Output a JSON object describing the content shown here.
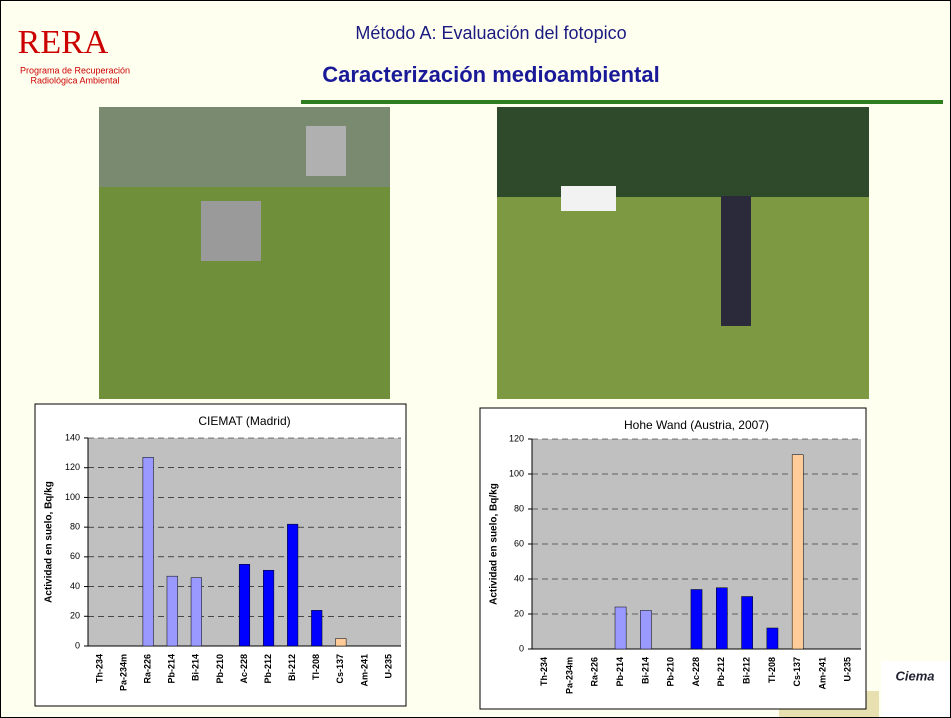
{
  "header": {
    "logo": "RERA",
    "logo_line1": "Programa de Recuperación",
    "logo_line2": "Radiológica Ambiental",
    "title": "Método A: Evaluación del fotopico",
    "subtitle": "Caracterización medioambiental",
    "footer_logo": "Ciema"
  },
  "chart_data": [
    {
      "type": "bar",
      "title": "CIEMAT (Madrid)",
      "y_label": "Actividad en suelo, Bq/kg",
      "categories": [
        "Th-234",
        "Pa-234m",
        "Ra-226",
        "Pb-214",
        "Bi-214",
        "Pb-210",
        "Ac-228",
        "Pb-212",
        "Bi-212",
        "Tl-208",
        "Cs-137",
        "Am-241",
        "U-235"
      ],
      "values": [
        0,
        0,
        127,
        47,
        46,
        0,
        55,
        51,
        82,
        24,
        5,
        0,
        0
      ],
      "colors": [
        "#9999ff",
        "#9999ff",
        "#9999ff",
        "#9999ff",
        "#9999ff",
        "#0000ff",
        "#0000ff",
        "#0000ff",
        "#0000ff",
        "#0000ff",
        "#ffcc99",
        "#ffcc99",
        "#ffcc99"
      ],
      "ylim": [
        0,
        140
      ],
      "yticks": [
        0,
        20,
        40,
        60,
        80,
        100,
        120,
        140
      ],
      "grid": true
    },
    {
      "type": "bar",
      "title": "Hohe Wand (Austria, 2007)",
      "y_label": "Actividad en suelo, Bq/kg",
      "categories": [
        "Th-234",
        "Pa-234m",
        "Ra-226",
        "Pb-214",
        "Bi-214",
        "Pb-210",
        "Ac-228",
        "Pb-212",
        "Bi-212",
        "Tl-208",
        "Cs-137",
        "Am-241",
        "U-235"
      ],
      "values": [
        0,
        0,
        0,
        24,
        22,
        0,
        34,
        35,
        30,
        12,
        111,
        0,
        0
      ],
      "colors": [
        "#9999ff",
        "#9999ff",
        "#9999ff",
        "#9999ff",
        "#9999ff",
        "#0000ff",
        "#0000ff",
        "#0000ff",
        "#0000ff",
        "#0000ff",
        "#ffcc99",
        "#ffcc99",
        "#ffcc99"
      ],
      "ylim": [
        0,
        120
      ],
      "yticks": [
        0,
        20,
        40,
        60,
        80,
        100,
        120
      ],
      "grid": true
    }
  ]
}
